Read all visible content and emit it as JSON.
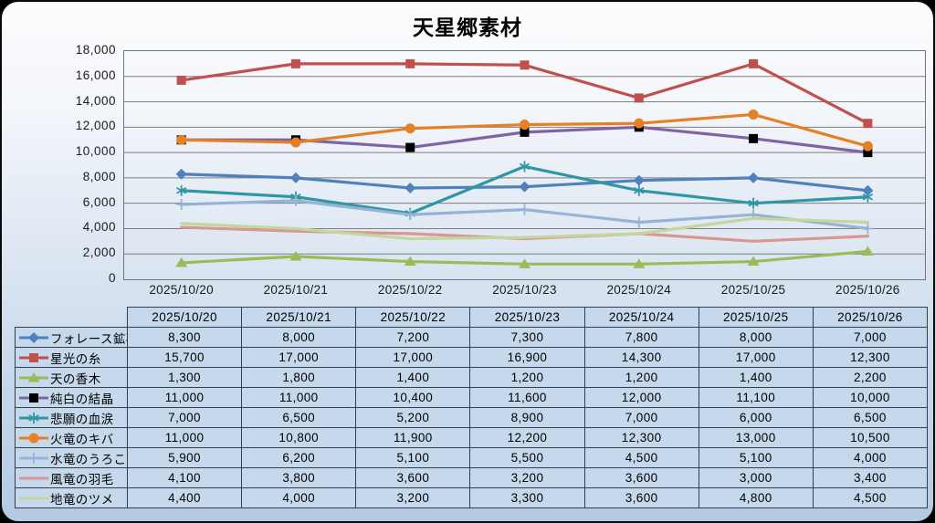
{
  "title": "天星郷素材",
  "chart_data": {
    "type": "line",
    "title": "天星郷素材",
    "categories": [
      "2025/10/20",
      "2025/10/21",
      "2025/10/22",
      "2025/10/23",
      "2025/10/24",
      "2025/10/25",
      "2025/10/26"
    ],
    "series": [
      {
        "name": "フォレース鉱石",
        "marker": "diamond",
        "color": "#4F81BD",
        "values": [
          8300,
          8000,
          7200,
          7300,
          7800,
          8000,
          7000
        ]
      },
      {
        "name": "星光の糸",
        "marker": "square",
        "color": "#C0504D",
        "values": [
          15700,
          17000,
          17000,
          16900,
          14300,
          17000,
          12300
        ]
      },
      {
        "name": "天の香木",
        "marker": "triangle",
        "color": "#9BBB59",
        "values": [
          1300,
          1800,
          1400,
          1200,
          1200,
          1400,
          2200
        ]
      },
      {
        "name": "純白の結晶",
        "marker": "square",
        "color": "#8064A2",
        "marker_color": "#000000",
        "values": [
          11000,
          11000,
          10400,
          11600,
          12000,
          11100,
          10000
        ]
      },
      {
        "name": "悲願の血涙",
        "marker": "asterisk",
        "color": "#2F97A2",
        "values": [
          7000,
          6500,
          5200,
          8900,
          7000,
          6000,
          6500
        ]
      },
      {
        "name": "火竜のキバ",
        "marker": "circle",
        "color": "#E58125",
        "values": [
          11000,
          10800,
          11900,
          12200,
          12300,
          13000,
          10500
        ]
      },
      {
        "name": "水竜のうろこ",
        "marker": "plus",
        "color": "#95B3D7",
        "values": [
          5900,
          6200,
          5100,
          5500,
          4500,
          5100,
          4000
        ]
      },
      {
        "name": "風竜の羽毛",
        "marker": "none",
        "color": "#D99694",
        "values": [
          4100,
          3800,
          3600,
          3200,
          3600,
          3000,
          3400
        ]
      },
      {
        "name": "地竜のツメ",
        "marker": "none",
        "color": "#C3D69B",
        "values": [
          4400,
          4000,
          3200,
          3300,
          3600,
          4800,
          4500
        ]
      }
    ],
    "ylim": [
      0,
      18000
    ],
    "ytick_step": 2000,
    "yticks": [
      0,
      2000,
      4000,
      6000,
      8000,
      10000,
      12000,
      14000,
      16000,
      18000
    ],
    "grid": true,
    "gridline_color": "#7F7F7F",
    "legend_position": "table-left"
  },
  "table": {
    "corner_label": "",
    "date_headers": [
      "2025/10/20",
      "2025/10/21",
      "2025/10/22",
      "2025/10/23",
      "2025/10/24",
      "2025/10/25",
      "2025/10/26"
    ]
  },
  "colors": {
    "panel_top": "#FDFDFE",
    "panel_bottom": "#B4CAE2",
    "table_cell_fill": "#C6D8EC",
    "table_border": "#333F4F",
    "plot_border": "#70757D"
  }
}
